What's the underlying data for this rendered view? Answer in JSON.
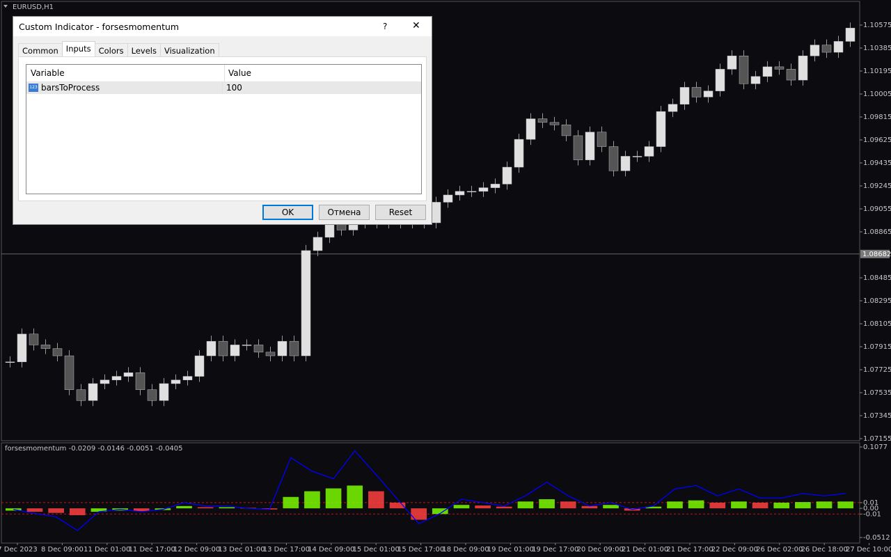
{
  "window": {
    "symbol": "EURUSD,H1"
  },
  "price": {
    "closes": [
      1.0779,
      1.0802,
      1.0793,
      1.079,
      1.0784,
      1.0756,
      1.0747,
      1.0761,
      1.0764,
      1.0767,
      1.077,
      1.0756,
      1.0747,
      1.0761,
      1.0764,
      1.0767,
      1.0784,
      1.0796,
      1.0784,
      1.0793,
      1.0793,
      1.0787,
      1.0784,
      1.0796,
      1.0784,
      1.0871,
      1.0882,
      1.0894,
      1.0888,
      1.0894,
      1.0894,
      1.0894,
      1.0897,
      1.0894,
      1.0894,
      1.0894,
      1.0911,
      1.0917,
      1.092,
      1.092,
      1.0923,
      1.0926,
      1.094,
      1.0963,
      1.098,
      1.0977,
      1.0975,
      1.0966,
      1.0946,
      1.0969,
      1.0957,
      1.0937,
      1.0949,
      1.0949,
      1.0957,
      1.0986,
      1.0992,
      1.1006,
      1.0998,
      1.1003,
      1.1021,
      1.1032,
      1.1009,
      1.1015,
      1.1023,
      1.1021,
      1.1012,
      1.1032,
      1.1041,
      1.1035,
      1.1044,
      1.1055
    ],
    "ticks": [
      1.10575,
      1.10385,
      1.10195,
      1.10005,
      1.09815,
      1.09625,
      1.09435,
      1.09245,
      1.09055,
      1.08865,
      1.08485,
      1.08295,
      1.08105,
      1.07915,
      1.07725,
      1.07535,
      1.07345,
      1.07155
    ],
    "current": 1.08682
  },
  "time_axis": {
    "labels": [
      "7 Dec 2023",
      "8 Dec 09:00",
      "11 Dec 01:00",
      "11 Dec 17:00",
      "12 Dec 09:00",
      "13 Dec 01:00",
      "13 Dec 17:00",
      "14 Dec 09:00",
      "15 Dec 01:00",
      "15 Dec 17:00",
      "18 Dec 09:00",
      "19 Dec 01:00",
      "19 Dec 17:00",
      "20 Dec 09:00",
      "21 Dec 01:00",
      "21 Dec 17:00",
      "22 Dec 09:00",
      "26 Dec 02:00",
      "26 Dec 18:00",
      "27 Dec 10:00"
    ]
  },
  "indicator": {
    "label": "forsesmomentum -0.0209 -0.0146 -0.0051 -0.0405",
    "ticks": [
      0.1077,
      0.01,
      {
        "value": 0,
        "label": "0.00"
      },
      -0.01,
      -0.0512
    ],
    "levels": [
      0.01,
      -0.01
    ],
    "line_color": "#0000ff",
    "up_color": "#7cfc00",
    "down_color": "#ff4040",
    "level_color": "#d01010",
    "line": [
      -0.002,
      -0.009,
      -0.015,
      -0.039,
      -0.006,
      -0.002,
      -0.006,
      -0.002,
      0.01,
      0.004,
      0.004,
      0,
      -0.002,
      0.089,
      0.065,
      0.052,
      0.101,
      0.059,
      0.016,
      -0.027,
      -0.009,
      0.016,
      0.01,
      0.004,
      0.022,
      0.046,
      0.022,
      0.004,
      0.01,
      -0.002,
      0.004,
      0.034,
      0.04,
      0.022,
      0.034,
      0.018,
      0.018,
      0.026,
      0.022,
      0.026
    ],
    "histogram": [
      -0.004,
      -0.006,
      -0.008,
      -0.012,
      -0.006,
      -0.004,
      -0.005,
      -0.003,
      0.004,
      0.002,
      0.002,
      0.001,
      -0.002,
      0.02,
      0.03,
      0.035,
      0.04,
      0.03,
      0.01,
      -0.02,
      -0.01,
      0.006,
      0.005,
      0.003,
      0.012,
      0.016,
      0.012,
      0.004,
      0.006,
      -0.004,
      0.003,
      0.012,
      0.014,
      0.01,
      0.012,
      0.01,
      0.01,
      0.011,
      0.012,
      0.012
    ]
  },
  "dialog": {
    "title": "Custom Indicator - forsesmomentum",
    "help": "?",
    "close": "✕",
    "tabs": [
      "Common",
      "Inputs",
      "Colors",
      "Levels",
      "Visualization"
    ],
    "table": {
      "header": [
        "Variable",
        "Value"
      ],
      "rows": [
        [
          "barsToProcess",
          "100"
        ]
      ]
    },
    "buttons": [
      "OK",
      "Отмена",
      "Reset"
    ]
  }
}
